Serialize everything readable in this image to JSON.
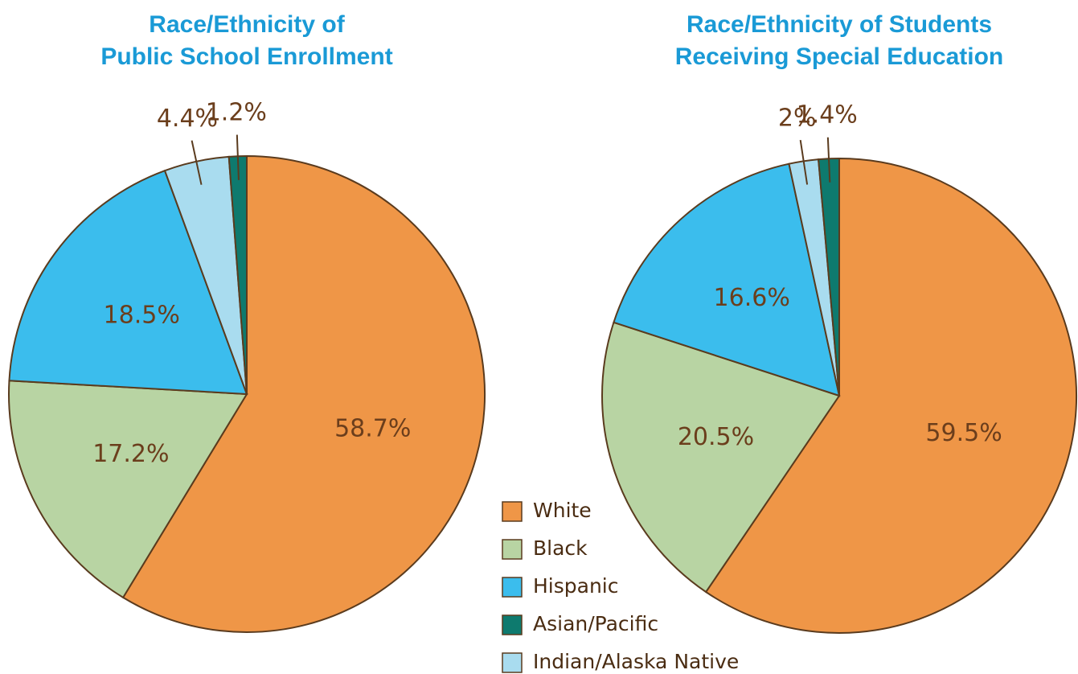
{
  "chart_data": [
    {
      "type": "pie",
      "title": "Race/Ethnicity of Public School Enrollment",
      "title_lines": [
        "Race/Ethnicity of",
        "Public School Enrollment"
      ],
      "categories": [
        "White",
        "Black",
        "Hispanic",
        "Asian/Pacific",
        "Indian/Alaska Native"
      ],
      "values": [
        58.7,
        17.2,
        18.5,
        1.2,
        4.4
      ],
      "value_labels": [
        "58.7%",
        "17.2%",
        "18.5%",
        "1.2%",
        "4.4%"
      ],
      "colors": [
        "#ef9647",
        "#b8d4a3",
        "#3bbded",
        "#0e7a6e",
        "#a9dcef"
      ]
    },
    {
      "type": "pie",
      "title": "Race/Ethnicity of Students Receiving Special Education",
      "title_lines": [
        "Race/Ethnicity of Students",
        "Receiving Special Education"
      ],
      "categories": [
        "White",
        "Black",
        "Hispanic",
        "Asian/Pacific",
        "Indian/Alaska Native"
      ],
      "values": [
        59.5,
        20.5,
        16.6,
        1.4,
        2
      ],
      "value_labels": [
        "59.5%",
        "20.5%",
        "16.6%",
        "1.4%",
        "2%"
      ],
      "colors": [
        "#ef9647",
        "#b8d4a3",
        "#3bbded",
        "#0e7a6e",
        "#a9dcef"
      ]
    }
  ]
}
